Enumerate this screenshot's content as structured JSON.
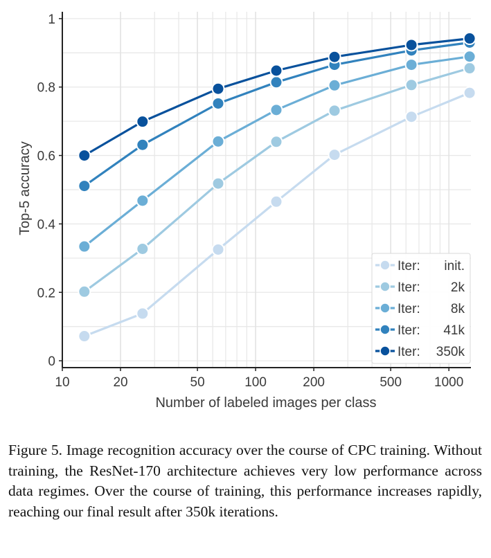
{
  "chart_data": {
    "type": "line",
    "xlabel": "Number of labeled images per class",
    "ylabel": "Top-5 accuracy",
    "xscale": "log",
    "xlim": [
      10,
      1300
    ],
    "ylim": [
      -0.02,
      1.02
    ],
    "x_ticks": [
      10,
      20,
      50,
      100,
      200,
      500,
      1000
    ],
    "x_tick_labels": [
      "10",
      "20",
      "50",
      "100",
      "200",
      "500",
      "1000"
    ],
    "y_ticks": [
      0,
      0.2,
      0.4,
      0.6,
      0.8,
      1
    ],
    "y_tick_labels": [
      "0",
      "0.2",
      "0.4",
      "0.6",
      "0.8",
      "1"
    ],
    "grid": true,
    "legend_position": "bottom-right",
    "x": [
      13,
      26,
      64,
      128,
      256,
      640,
      1280
    ],
    "series": [
      {
        "legend_prefix": "Iter:",
        "legend_value": "init.",
        "color": "#c6dbef",
        "values": [
          0.072,
          0.138,
          0.325,
          0.465,
          0.602,
          0.713,
          0.783
        ]
      },
      {
        "legend_prefix": "Iter:",
        "legend_value": "2k",
        "color": "#9ecae1",
        "values": [
          0.202,
          0.327,
          0.518,
          0.64,
          0.731,
          0.806,
          0.855
        ]
      },
      {
        "legend_prefix": "Iter:",
        "legend_value": "8k",
        "color": "#6baed6",
        "values": [
          0.334,
          0.468,
          0.641,
          0.733,
          0.805,
          0.865,
          0.889
        ]
      },
      {
        "legend_prefix": "Iter:",
        "legend_value": "41k",
        "color": "#3182bd",
        "values": [
          0.511,
          0.631,
          0.752,
          0.814,
          0.865,
          0.907,
          0.93
        ]
      },
      {
        "legend_prefix": "Iter:",
        "legend_value": "350k",
        "color": "#08519c",
        "values": [
          0.6,
          0.699,
          0.795,
          0.848,
          0.888,
          0.923,
          0.942
        ]
      }
    ]
  },
  "caption": "Figure 5. Image recognition accuracy over the course of CPC training. Without training, the ResNet-170 architecture achieves very low performance across data regimes. Over the course of training, this performance increases rapidly, reaching our final result after 350k iterations."
}
